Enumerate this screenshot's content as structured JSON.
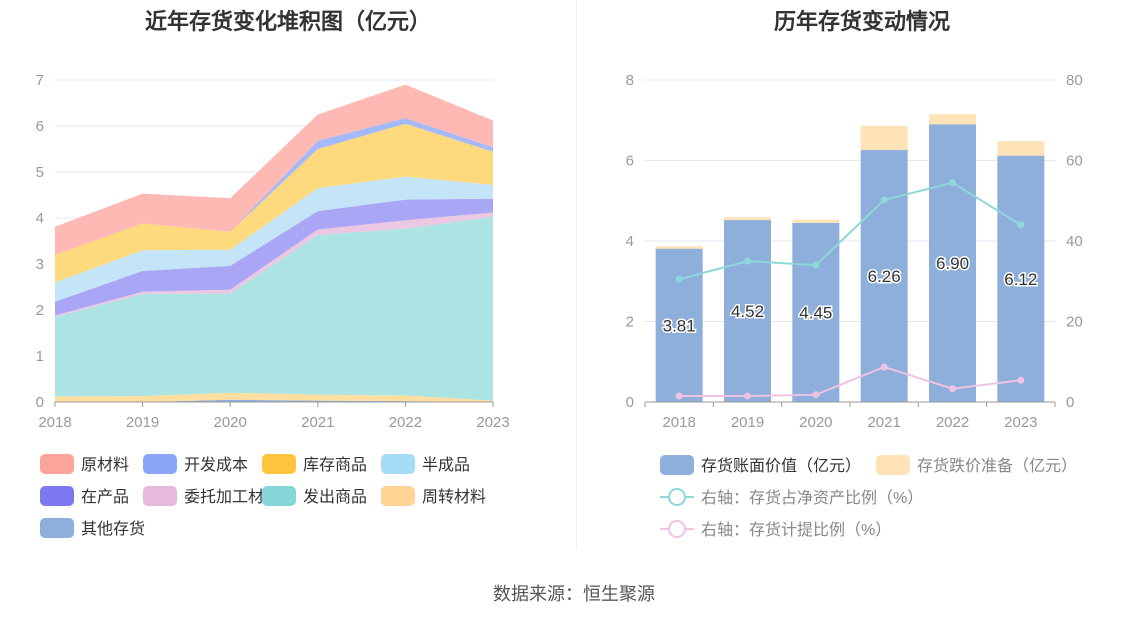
{
  "left_title": "近年存货变化堆积图（亿元）",
  "right_title": "历年存货变动情况",
  "source": "数据来源：恒生聚源",
  "chart_data": [
    {
      "type": "area",
      "stacked": true,
      "title": "近年存货变化堆积图（亿元）",
      "x": [
        "2018",
        "2019",
        "2020",
        "2021",
        "2022",
        "2023"
      ],
      "ylim": [
        0,
        7
      ],
      "yticks": [
        "0",
        "1",
        "2",
        "3",
        "4",
        "5",
        "6",
        "7"
      ],
      "legend_position": "bottom",
      "series": [
        {
          "name": "其他存货",
          "color": "#8eaedc",
          "values": [
            0.0,
            0.0,
            0.05,
            0.03,
            0.02,
            0.0
          ]
        },
        {
          "name": "周转材料",
          "color": "#ffdfa0",
          "values": [
            0.12,
            0.13,
            0.15,
            0.13,
            0.12,
            0.03
          ]
        },
        {
          "name": "发出商品",
          "color": "#ace3e3",
          "values": [
            1.73,
            2.22,
            2.16,
            3.47,
            3.63,
            4.0
          ]
        },
        {
          "name": "委托加工材料",
          "color": "#ecc7e2",
          "values": [
            0.03,
            0.05,
            0.08,
            0.12,
            0.18,
            0.09
          ]
        },
        {
          "name": "在产品",
          "color": "#a9a7f5",
          "values": [
            0.3,
            0.45,
            0.52,
            0.4,
            0.45,
            0.3
          ]
        },
        {
          "name": "半成品",
          "color": "#c4e5f8",
          "values": [
            0.42,
            0.45,
            0.35,
            0.5,
            0.5,
            0.3
          ]
        },
        {
          "name": "库存商品",
          "color": "#ffd97e",
          "values": [
            0.6,
            0.58,
            0.39,
            0.85,
            1.15,
            0.72
          ]
        },
        {
          "name": "开发成本",
          "color": "#a4b9f9",
          "values": [
            0.0,
            0.0,
            0.0,
            0.18,
            0.12,
            0.1
          ]
        },
        {
          "name": "原材料",
          "color": "#feb9b4",
          "values": [
            0.61,
            0.65,
            0.73,
            0.57,
            0.73,
            0.58
          ]
        }
      ],
      "legend_order": [
        "原材料",
        "开发成本",
        "库存商品",
        "半成品",
        "在产品",
        "委托加工材料",
        "发出商品",
        "周转材料",
        "其他存货"
      ],
      "legend_colors": [
        "#fba49c",
        "#8aa6f9",
        "#ffc53e",
        "#a6dcf8",
        "#7c79f2",
        "#e8b9da",
        "#86d6d8",
        "#ffd494",
        "#8eaedc"
      ]
    },
    {
      "type": "bar",
      "stacked": true,
      "title": "历年存货变动情况",
      "categories": [
        "2018",
        "2019",
        "2020",
        "2021",
        "2022",
        "2023"
      ],
      "ylim": [
        0,
        8
      ],
      "yticks": [
        "0",
        "2",
        "4",
        "6",
        "8"
      ],
      "y2lim": [
        0,
        80
      ],
      "y2ticks": [
        "0",
        "20",
        "40",
        "60",
        "80"
      ],
      "legend_position": "bottom",
      "series": [
        {
          "name": "存货账面价值（亿元）",
          "color": "#8eaedc",
          "values": [
            3.81,
            4.52,
            4.45,
            6.26,
            6.9,
            6.12
          ],
          "labels": [
            "3.81",
            "4.52",
            "4.45",
            "6.26",
            "6.90",
            "6.12"
          ]
        },
        {
          "name": "存货跌价准备（亿元）",
          "color": "#fee3b6",
          "values": [
            0.06,
            0.07,
            0.08,
            0.6,
            0.25,
            0.36
          ]
        }
      ],
      "lines": [
        {
          "name": "右轴：存货占净资产比例（%）",
          "color": "#8ed8d9",
          "axis": "right",
          "values": [
            30.5,
            35.0,
            34.0,
            50.2,
            54.5,
            44.0
          ]
        },
        {
          "name": "右轴：存货计提比例（%）",
          "color": "#efc3e2",
          "axis": "right",
          "values": [
            1.5,
            1.5,
            1.8,
            8.7,
            3.3,
            5.4
          ]
        }
      ]
    }
  ]
}
